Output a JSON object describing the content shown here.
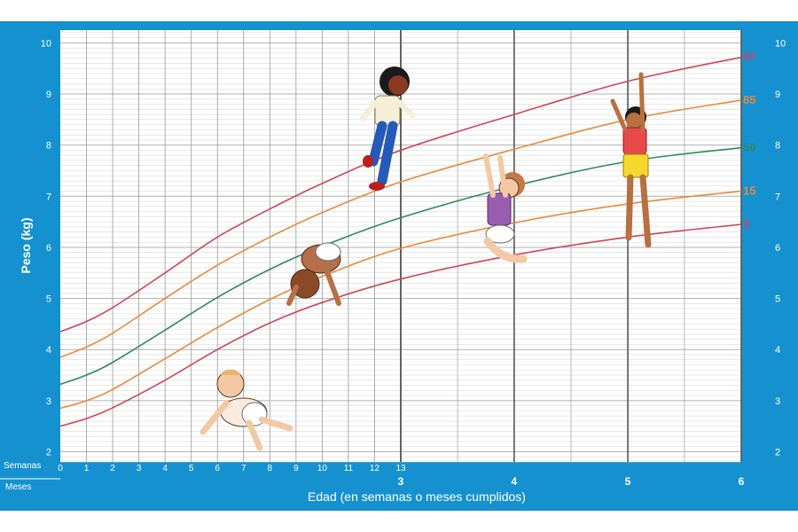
{
  "chart_data": {
    "type": "line",
    "title": "",
    "xlabel": "Edad (en semanas o meses cumplidos)",
    "ylabel": "Peso (kg)",
    "row_label_weeks": "Semanas",
    "row_label_months": "Meses",
    "xlim_weeks": [
      0,
      26
    ],
    "ylim": [
      1.8,
      10.25
    ],
    "y_ticks": [
      "2",
      "3",
      "4",
      "5",
      "6",
      "7",
      "8",
      "9",
      "10"
    ],
    "week_ticks": [
      "0",
      "1",
      "2",
      "3",
      "4",
      "5",
      "6",
      "7",
      "8",
      "9",
      "10",
      "11",
      "12",
      "13"
    ],
    "month_ticks": [
      {
        "label": "3",
        "weeks": 13
      },
      {
        "label": "4",
        "weeks": 17.33
      },
      {
        "label": "5",
        "weeks": 21.67
      },
      {
        "label": "6",
        "weeks": 26
      }
    ],
    "x_weeks": [
      0,
      1,
      2,
      4,
      6,
      8,
      10,
      13,
      17.33,
      21.67,
      26
    ],
    "series": [
      {
        "name": "97",
        "color": "#d04558",
        "values": [
          4.35,
          4.55,
          4.82,
          5.5,
          6.2,
          6.75,
          7.25,
          7.9,
          8.6,
          9.25,
          9.72
        ]
      },
      {
        "name": "85",
        "color": "#e88a3c",
        "values": [
          3.85,
          4.05,
          4.32,
          5.0,
          5.65,
          6.2,
          6.68,
          7.28,
          7.92,
          8.5,
          8.88
        ]
      },
      {
        "name": "50",
        "color": "#2e8b57",
        "values": [
          3.32,
          3.5,
          3.75,
          4.38,
          5.02,
          5.57,
          6.02,
          6.58,
          7.2,
          7.68,
          7.95
        ]
      },
      {
        "name": "15",
        "color": "#e88a3c",
        "values": [
          2.85,
          3.0,
          3.22,
          3.82,
          4.43,
          4.98,
          5.43,
          5.98,
          6.48,
          6.85,
          7.1
        ]
      },
      {
        "name": "3",
        "color": "#d04558",
        "values": [
          2.5,
          2.65,
          2.86,
          3.4,
          4.0,
          4.52,
          4.92,
          5.38,
          5.85,
          6.2,
          6.45
        ]
      }
    ],
    "grid": true,
    "illustrations": [
      "baby-crawling-icon",
      "baby-on-hands-icon",
      "toddler-walking-icon",
      "baby-sitting-reaching-icon",
      "child-standing-reaching-icon"
    ]
  }
}
